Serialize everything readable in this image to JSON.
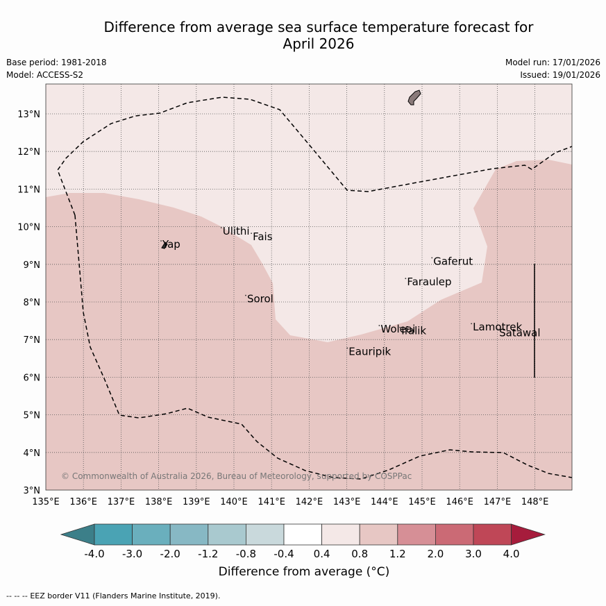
{
  "header": {
    "title_line1": "Difference from average sea surface temperature forecast for",
    "title_line2": "April 2026",
    "base_period": "Base period: 1981-2018",
    "model": "Model: ACCESS-S2",
    "model_run": "Model run: 17/01/2026",
    "issued": "Issued: 19/01/2026"
  },
  "map": {
    "lon_range": [
      135,
      149
    ],
    "lat_range": [
      3,
      13.8
    ],
    "lat_ticks": [
      "3°N",
      "4°N",
      "5°N",
      "6°N",
      "7°N",
      "8°N",
      "9°N",
      "10°N",
      "11°N",
      "12°N",
      "13°N"
    ],
    "lon_ticks": [
      "135°E",
      "136°E",
      "137°E",
      "138°E",
      "139°E",
      "140°E",
      "141°E",
      "142°E",
      "143°E",
      "144°E",
      "145°E",
      "146°E",
      "147°E",
      "148°E"
    ],
    "background_category": "0.4 to 0.8",
    "region_category": "0.8 to 1.2",
    "background_color": "#f4e8e7",
    "region_color": "#e7c7c4",
    "copyright": "© Commonwealth of Australia 2026, Bureau of Meteorology, supported by COSPPac",
    "islands": [
      {
        "name": "Ulithi",
        "lon": 139.7,
        "lat": 9.9
      },
      {
        "name": "Fais",
        "lon": 140.5,
        "lat": 9.75
      },
      {
        "name": "Yap",
        "lon": 138.1,
        "lat": 9.55
      },
      {
        "name": "Gaferut",
        "lon": 145.3,
        "lat": 9.1
      },
      {
        "name": "Faraulep",
        "lon": 144.6,
        "lat": 8.55
      },
      {
        "name": "Sorol",
        "lon": 140.35,
        "lat": 8.1
      },
      {
        "name": "Lamotrek",
        "lon": 146.35,
        "lat": 7.35
      },
      {
        "name": "Woleai",
        "lon": 143.9,
        "lat": 7.3
      },
      {
        "name": "Ifalik",
        "lon": 144.45,
        "lat": 7.25
      },
      {
        "name": "Satawal",
        "lon": 147.05,
        "lat": 7.2
      },
      {
        "name": "Eauripik",
        "lon": 143.05,
        "lat": 6.7
      }
    ]
  },
  "colorbar": {
    "title": "Difference from average (°C)",
    "tick_labels": [
      "-4.0",
      "-3.0",
      "-2.0",
      "-1.2",
      "-0.8",
      "-0.4",
      "0.4",
      "0.8",
      "1.2",
      "2.0",
      "3.0",
      "4.0"
    ],
    "colors": [
      "#4aa3b4",
      "#6aafbd",
      "#87b8c4",
      "#a9c9cf",
      "#c9d9dc",
      "#ffffff",
      "#f4e8e7",
      "#e7c7c4",
      "#d68f96",
      "#cb6a75",
      "#bf4757"
    ],
    "under_color": "#3c7f89",
    "over_color": "#a61c3c"
  },
  "footer": {
    "legend_symbol": "-- -- --",
    "legend_text": "EEZ border V11 (Flanders Marine Institute, 2019)."
  }
}
